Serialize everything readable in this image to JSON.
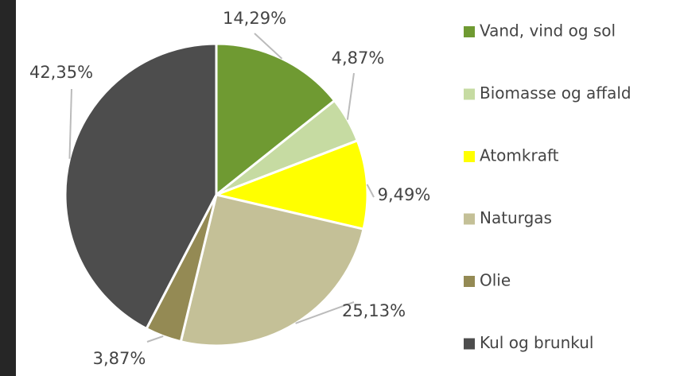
{
  "chart_data": {
    "type": "pie",
    "categories": [
      "Vand, vind og sol",
      "Biomasse og affald",
      "Atomkraft",
      "Naturgas",
      "Olie",
      "Kul og brunkul"
    ],
    "values": [
      14.29,
      4.87,
      9.49,
      25.13,
      3.87,
      42.35
    ],
    "value_labels": [
      "14,29%",
      "4,87%",
      "9,49%",
      "25,13%",
      "3,87%",
      "42,35%"
    ],
    "colors": [
      "#6f9a32",
      "#c6dba2",
      "#ffff00",
      "#c4c097",
      "#948a54",
      "#4d4d4d"
    ]
  }
}
